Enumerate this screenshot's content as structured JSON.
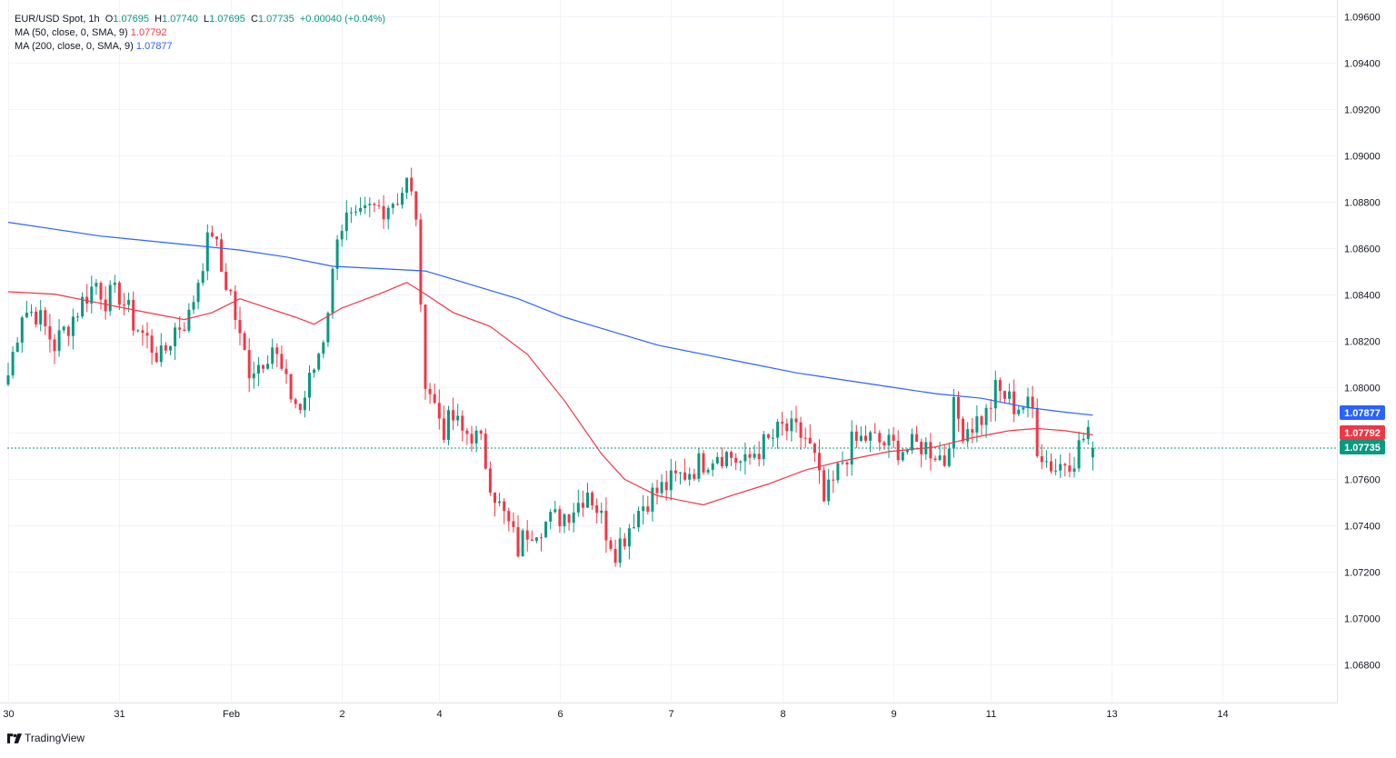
{
  "header": {
    "symbol": "EUR/USD Spot",
    "interval": "1h",
    "o_label": "O",
    "o_value": "1.07695",
    "h_label": "H",
    "h_value": "1.07740",
    "l_label": "L",
    "l_value": "1.07695",
    "c_label": "C",
    "c_value": "1.07735",
    "change": "+0.00040 (+0.04%)"
  },
  "indicators": [
    {
      "label": "MA (50, close, 0, SMA, 9)",
      "value": "1.07792",
      "color": "#f23645"
    },
    {
      "label": "MA (200, close, 0, SMA, 9)",
      "value": "1.07877",
      "color": "#2962ff"
    }
  ],
  "price_badges": [
    {
      "text": "1.07877",
      "value": 1.07877,
      "color": "#2962ff"
    },
    {
      "text": "1.07792",
      "value": 1.07792,
      "color": "#f23645"
    },
    {
      "text": "1.07735",
      "value": 1.07735,
      "color": "#089981"
    }
  ],
  "brand": "TradingView",
  "colors": {
    "up": "#089981",
    "down": "#f23645",
    "ma50": "#f23645",
    "ma200": "#2962ff",
    "grid": "#f0f3fa",
    "axis_text": "#131722"
  },
  "chart_data": {
    "type": "candlestick",
    "timeframe": "1h",
    "y_axis": {
      "range": [
        1.0666,
        1.0965
      ],
      "ticks": [
        "1.06800",
        "1.07000",
        "1.07200",
        "1.07400",
        "1.07600",
        "1.07800",
        "1.08000",
        "1.08200",
        "1.08400",
        "1.08600",
        "1.08800",
        "1.09000",
        "1.09200",
        "1.09400",
        "1.09600"
      ]
    },
    "x_axis": {
      "range_hours": [
        0,
        375
      ],
      "ticks": [
        {
          "label": "30",
          "hour": 0
        },
        {
          "label": "31",
          "hour": 24
        },
        {
          "label": "Feb",
          "hour": 48
        },
        {
          "label": "2",
          "hour": 72
        },
        {
          "label": "4",
          "hour": 93
        },
        {
          "label": "6",
          "hour": 119
        },
        {
          "label": "7",
          "hour": 143
        },
        {
          "label": "8",
          "hour": 167
        },
        {
          "label": "9",
          "hour": 191
        },
        {
          "label": "11",
          "hour": 212
        },
        {
          "label": "13",
          "hour": 238
        },
        {
          "label": "14",
          "hour": 262
        }
      ]
    },
    "grid": true,
    "last_close": 1.07735,
    "ohlc_anchor_closes": [
      [
        0,
        1.0805
      ],
      [
        3,
        1.0833
      ],
      [
        6,
        1.0832
      ],
      [
        10,
        1.0818
      ],
      [
        13,
        1.0827
      ],
      [
        17,
        1.084
      ],
      [
        19,
        1.0845
      ],
      [
        21,
        1.0838
      ],
      [
        24,
        1.084
      ],
      [
        27,
        1.0828
      ],
      [
        30,
        1.082
      ],
      [
        33,
        1.0812
      ],
      [
        36,
        1.0825
      ],
      [
        39,
        1.083
      ],
      [
        42,
        1.0855
      ],
      [
        44,
        1.0868
      ],
      [
        46,
        1.085
      ],
      [
        48,
        1.084
      ],
      [
        50,
        1.082
      ],
      [
        52,
        1.0808
      ],
      [
        54,
        1.081
      ],
      [
        57,
        1.0818
      ],
      [
        60,
        1.08
      ],
      [
        63,
        1.079
      ],
      [
        66,
        1.0808
      ],
      [
        68,
        1.0822
      ],
      [
        70,
        1.0848
      ],
      [
        71,
        1.0868
      ],
      [
        73,
        1.0872
      ],
      [
        75,
        1.087
      ],
      [
        78,
        1.0876
      ],
      [
        81,
        1.0878
      ],
      [
        84,
        1.0882
      ],
      [
        86,
        1.0888
      ],
      [
        88,
        1.0875
      ],
      [
        89,
        1.083
      ],
      [
        90,
        1.0805
      ],
      [
        92,
        1.0792
      ],
      [
        94,
        1.0782
      ],
      [
        96,
        1.0786
      ],
      [
        98,
        1.078
      ],
      [
        100,
        1.078
      ],
      [
        102,
        1.0775
      ],
      [
        104,
        1.076
      ],
      [
        106,
        1.0748
      ],
      [
        108,
        1.074
      ],
      [
        110,
        1.073
      ],
      [
        112,
        1.0738
      ],
      [
        114,
        1.074
      ],
      [
        117,
        1.0742
      ],
      [
        120,
        1.0745
      ],
      [
        123,
        1.075
      ],
      [
        125,
        1.0756
      ],
      [
        127,
        1.0748
      ],
      [
        129,
        1.0738
      ],
      [
        131,
        1.073
      ],
      [
        133,
        1.0736
      ],
      [
        135,
        1.0744
      ],
      [
        138,
        1.0752
      ],
      [
        141,
        1.0756
      ],
      [
        144,
        1.076
      ],
      [
        147,
        1.0764
      ],
      [
        150,
        1.0768
      ],
      [
        153,
        1.0772
      ],
      [
        156,
        1.077
      ],
      [
        159,
        1.0766
      ],
      [
        161,
        1.0772
      ],
      [
        164,
        1.0776
      ],
      [
        167,
        1.0782
      ],
      [
        170,
        1.078
      ],
      [
        172,
        1.0778
      ],
      [
        174,
        1.0768
      ],
      [
        176,
        1.075
      ],
      [
        178,
        1.0758
      ],
      [
        180,
        1.0768
      ],
      [
        182,
        1.0775
      ],
      [
        185,
        1.0778
      ],
      [
        188,
        1.0776
      ],
      [
        191,
        1.0774
      ],
      [
        194,
        1.0773
      ],
      [
        197,
        1.0775
      ],
      [
        200,
        1.0772
      ],
      [
        202,
        1.0768
      ],
      [
        204,
        1.079
      ],
      [
        206,
        1.0782
      ],
      [
        208,
        1.0784
      ],
      [
        211,
        1.0788
      ],
      [
        213,
        1.0798
      ],
      [
        215,
        1.0796
      ],
      [
        217,
        1.0792
      ],
      [
        219,
        1.0792
      ],
      [
        221,
        1.079
      ],
      [
        222,
        1.0775
      ],
      [
        224,
        1.0768
      ],
      [
        226,
        1.0765
      ],
      [
        228,
        1.0768
      ],
      [
        230,
        1.077
      ],
      [
        232,
        1.0778
      ],
      [
        233,
        1.0782
      ],
      [
        234,
        1.07735
      ]
    ],
    "series": [
      {
        "name": "MA (50, close, 0, SMA, 9)",
        "type": "line",
        "color": "#f23645",
        "points": [
          [
            0,
            1.0841
          ],
          [
            10,
            1.084
          ],
          [
            20,
            1.0836
          ],
          [
            30,
            1.0832
          ],
          [
            38,
            1.0829
          ],
          [
            44,
            1.0832
          ],
          [
            50,
            1.0838
          ],
          [
            56,
            1.0834
          ],
          [
            62,
            1.083
          ],
          [
            66,
            1.0827
          ],
          [
            72,
            1.0834
          ],
          [
            80,
            1.084
          ],
          [
            86,
            1.0845
          ],
          [
            90,
            1.084
          ],
          [
            96,
            1.0832
          ],
          [
            104,
            1.0826
          ],
          [
            112,
            1.0814
          ],
          [
            120,
            1.0794
          ],
          [
            128,
            1.0771
          ],
          [
            133,
            1.076
          ],
          [
            140,
            1.0753
          ],
          [
            150,
            1.0749
          ],
          [
            156,
            1.0753
          ],
          [
            164,
            1.0758
          ],
          [
            172,
            1.0764
          ],
          [
            180,
            1.0768
          ],
          [
            190,
            1.0772
          ],
          [
            200,
            1.0774
          ],
          [
            208,
            1.0778
          ],
          [
            216,
            1.0781
          ],
          [
            222,
            1.0782
          ],
          [
            228,
            1.0781
          ],
          [
            234,
            1.07792
          ]
        ]
      },
      {
        "name": "MA (200, close, 0, SMA, 9)",
        "type": "line",
        "color": "#2962ff",
        "points": [
          [
            0,
            1.0871
          ],
          [
            10,
            1.0868
          ],
          [
            20,
            1.0865
          ],
          [
            30,
            1.0863
          ],
          [
            40,
            1.0861
          ],
          [
            50,
            1.0859
          ],
          [
            60,
            1.0856
          ],
          [
            70,
            1.0852
          ],
          [
            80,
            1.0851
          ],
          [
            90,
            1.085
          ],
          [
            100,
            1.0844
          ],
          [
            110,
            1.0838
          ],
          [
            120,
            1.083
          ],
          [
            130,
            1.0824
          ],
          [
            140,
            1.0818
          ],
          [
            150,
            1.0814
          ],
          [
            160,
            1.081
          ],
          [
            170,
            1.0806
          ],
          [
            180,
            1.0803
          ],
          [
            190,
            1.08
          ],
          [
            200,
            1.0797
          ],
          [
            210,
            1.0795
          ],
          [
            220,
            1.0791
          ],
          [
            228,
            1.0789
          ],
          [
            234,
            1.07877
          ]
        ]
      }
    ]
  }
}
